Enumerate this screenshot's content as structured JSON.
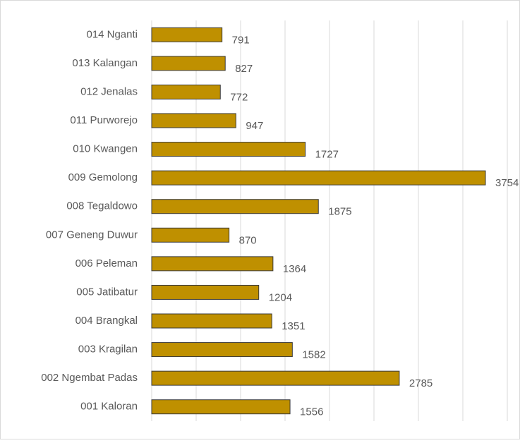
{
  "chart_data": {
    "type": "bar",
    "orientation": "horizontal",
    "categories": [
      "001 Kaloran",
      "002 Ngembat Padas",
      "003 Kragilan",
      "004 Brangkal",
      "005 Jatibatur",
      "006 Peleman",
      "007 Geneng Duwur",
      "008 Tegaldowo",
      "009 Gemolong",
      "010 Kwangen",
      "011 Purworejo",
      "012 Jenalas",
      "013 Kalangan",
      "014 Nganti"
    ],
    "values": [
      1556,
      2785,
      1582,
      1351,
      1204,
      1364,
      870,
      1875,
      3754,
      1727,
      947,
      772,
      827,
      791
    ],
    "color": "#bf9000",
    "xlim": [
      0,
      4000
    ],
    "xticks": [
      0,
      500,
      1000,
      1500,
      2000,
      2500,
      3000,
      3500,
      4000
    ],
    "grid": true
  }
}
